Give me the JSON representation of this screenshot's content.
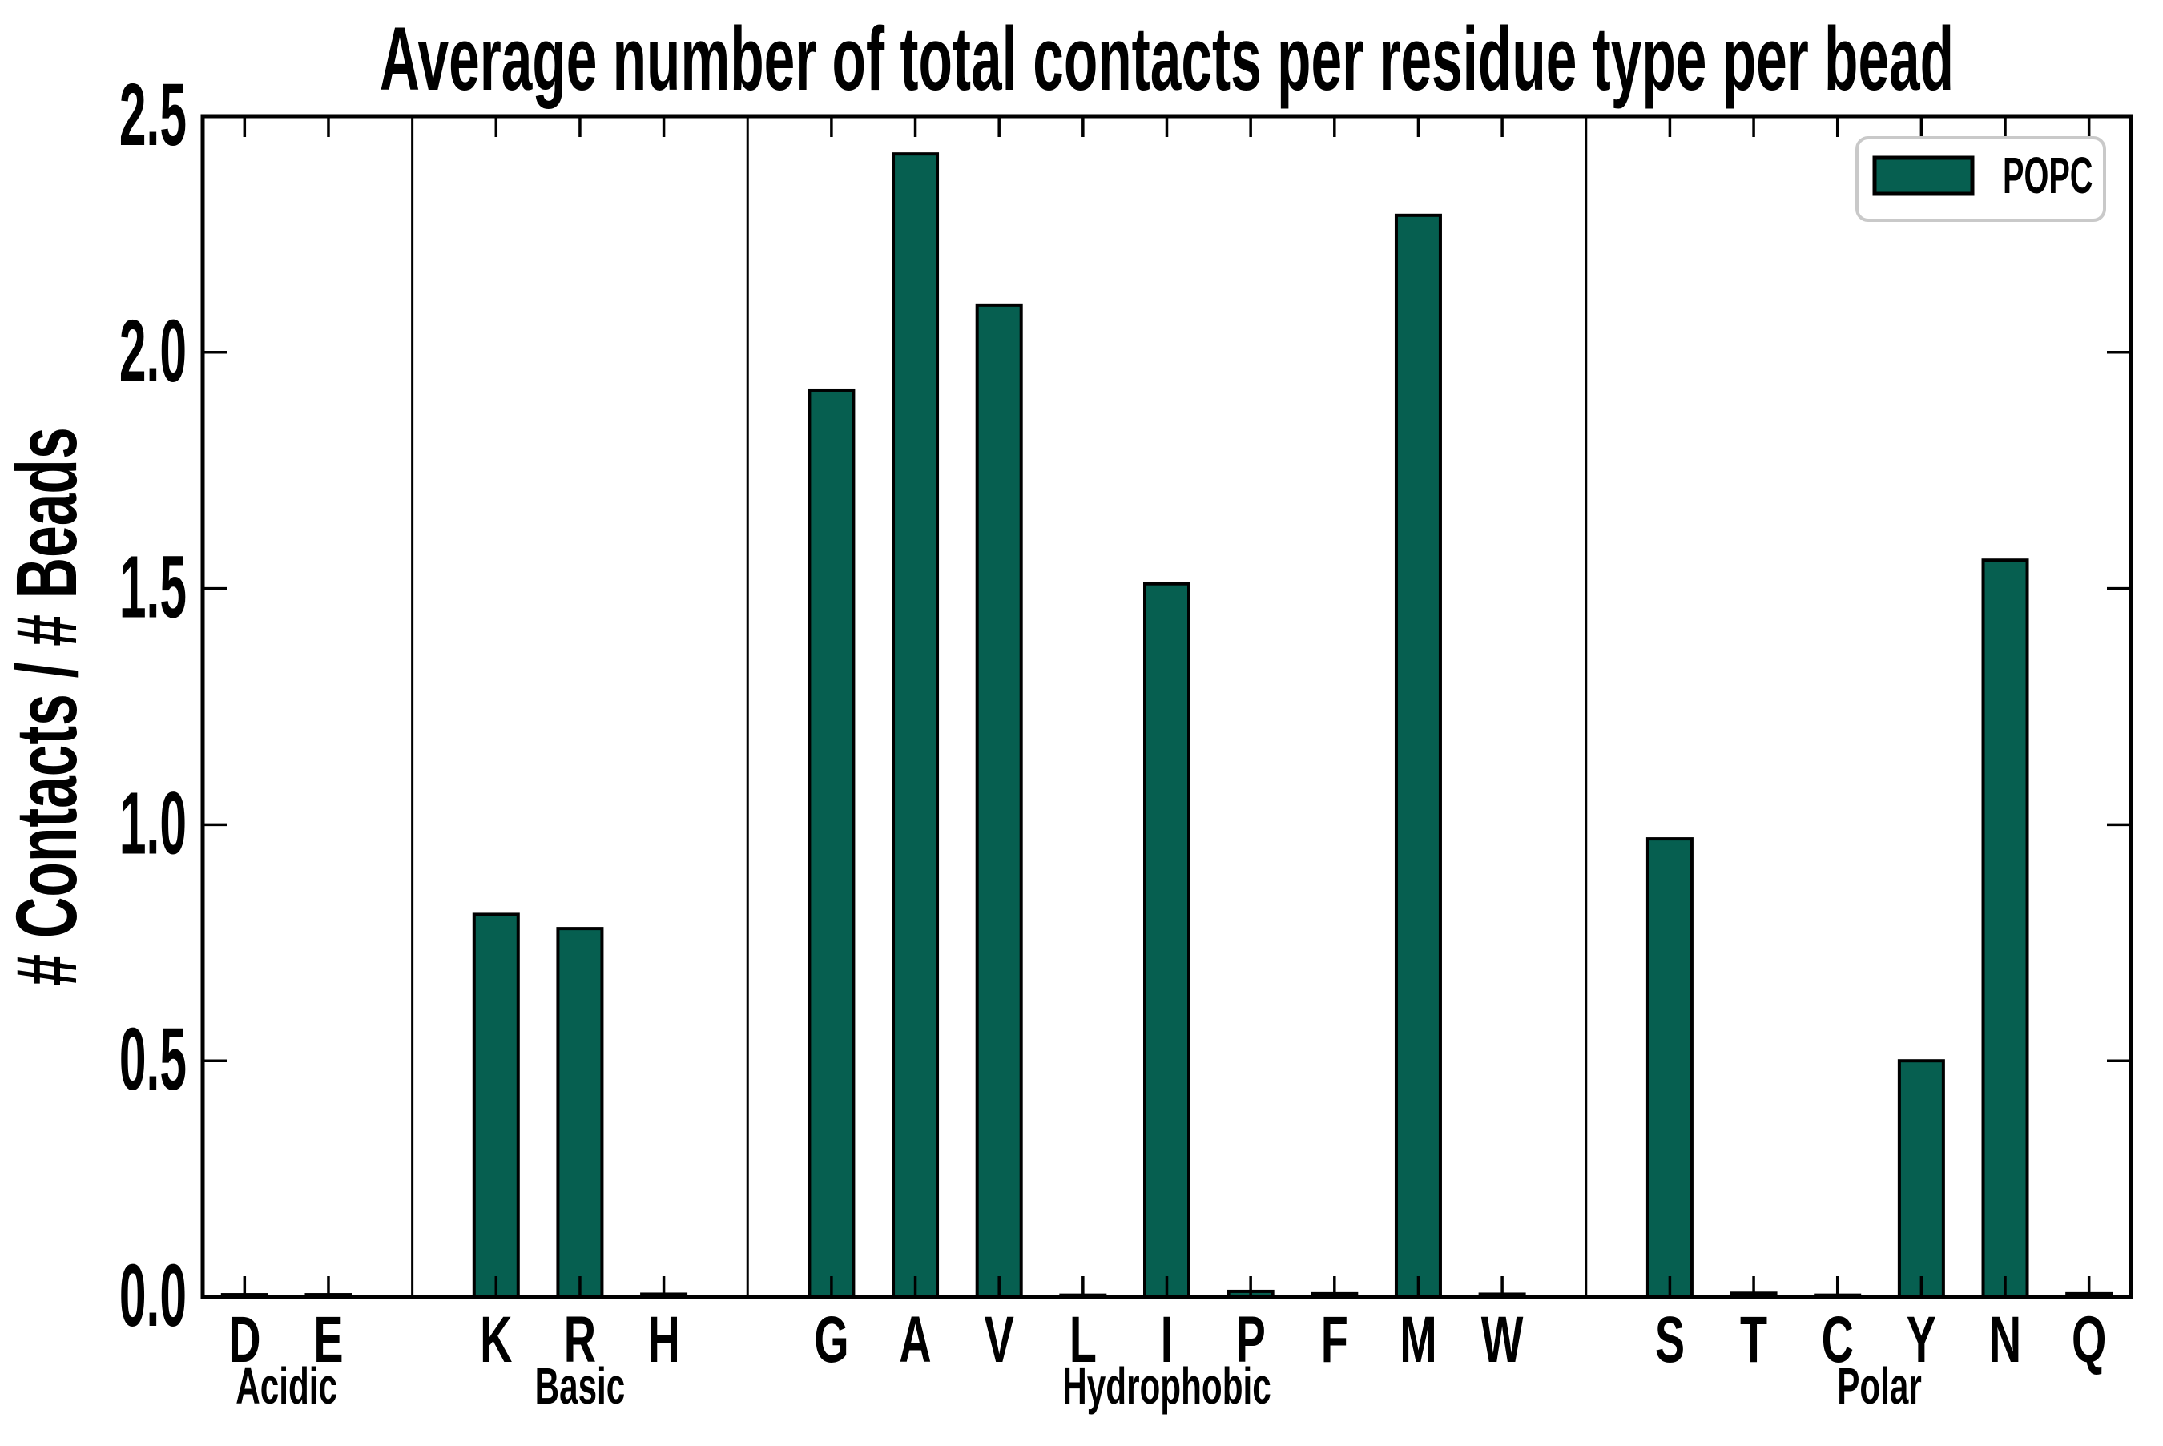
{
  "figure": {
    "title": "Average number of total contacts per residue type per bead",
    "background": "#ffffff"
  },
  "chart_data": {
    "type": "bar",
    "title": "Average number of total contacts per residue type per bead",
    "xlabel": "",
    "ylabel": "# Contacts / # Beads",
    "ylim": [
      0.0,
      2.5
    ],
    "yticks": [
      0.0,
      0.5,
      1.0,
      1.5,
      2.0,
      2.5
    ],
    "grid": "off",
    "legend_position": "upper-right",
    "series_name": "POPC",
    "groups": [
      {
        "label": "Acidic",
        "categories": [
          "D",
          "E"
        ],
        "values": [
          0.005,
          0.005
        ]
      },
      {
        "label": "Basic",
        "categories": [
          "K",
          "R",
          "H"
        ],
        "values": [
          0.81,
          0.78,
          0.006
        ]
      },
      {
        "label": "Hydrophobic",
        "categories": [
          "G",
          "A",
          "V",
          "L",
          "I",
          "P",
          "F",
          "M",
          "W"
        ],
        "values": [
          1.92,
          2.42,
          2.1,
          0.004,
          1.51,
          0.012,
          0.007,
          2.29,
          0.006
        ]
      },
      {
        "label": "Polar",
        "categories": [
          "S",
          "T",
          "C",
          "Y",
          "N",
          "Q"
        ],
        "values": [
          0.97,
          0.008,
          0.004,
          0.5,
          1.56,
          0.007
        ]
      }
    ]
  },
  "legend": {
    "label": "POPC",
    "swatch_color": "#065f50",
    "swatch_edge_color": "#000000",
    "border_color": "#c9c9c9",
    "background": "#ffffff"
  },
  "colors": {
    "bar_fill": "#065f50",
    "bar_edge": "#000000",
    "axis": "#000000",
    "text": "#000000",
    "separator": "#000000"
  }
}
